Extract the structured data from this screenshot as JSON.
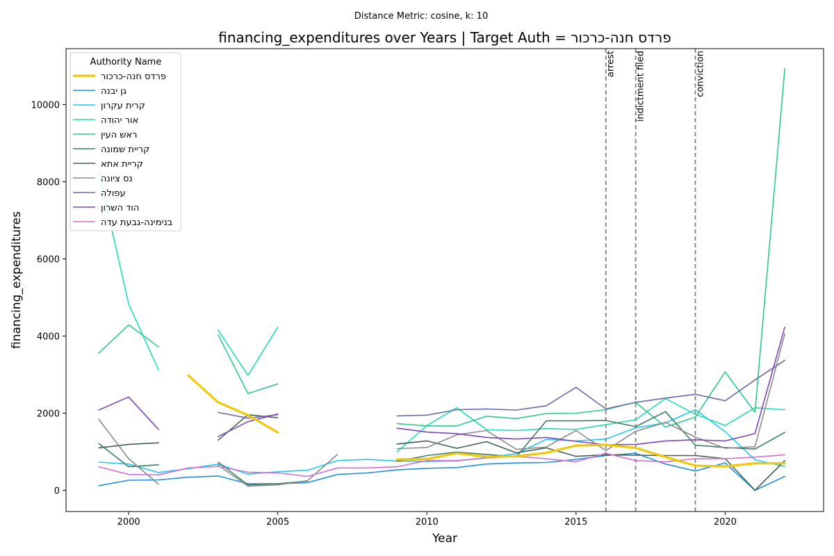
{
  "chart_data": {
    "type": "line",
    "suptitle": "Distance Metric: cosine, k: 10",
    "title": "financing_expenditures over Years | Target Auth = פרדס חנה-כרכור",
    "xlabel": "Year",
    "ylabel": "financing_expenditures",
    "xlim": [
      1997.9,
      2023.3
    ],
    "ylim": [
      -550,
      11450
    ],
    "xticks": [
      2000,
      2005,
      2010,
      2015,
      2020
    ],
    "yticks": [
      0,
      2000,
      4000,
      6000,
      8000,
      10000
    ],
    "grid": false,
    "legend": {
      "title": "Authority Name",
      "placement": "top-left"
    },
    "annotations": [
      {
        "x": 2016,
        "label": "arrest"
      },
      {
        "x": 2017,
        "label": "indictment filed"
      },
      {
        "x": 2019,
        "label": "conviction"
      }
    ],
    "series": [
      {
        "name": "פרדס חנה-כרכור",
        "color": "#f0c808",
        "width": 3.2,
        "values": [
          null,
          null,
          null,
          2980,
          2280,
          1950,
          1500,
          null,
          null,
          null,
          800,
          810,
          960,
          870,
          880,
          970,
          1160,
          1180,
          1100,
          860,
          640,
          620,
          700,
          700
        ]
      },
      {
        "name": "גן יבנה",
        "color": "#1f8fdc",
        "width": 1.6,
        "values": [
          120,
          260,
          270,
          340,
          370,
          170,
          170,
          200,
          410,
          450,
          530,
          570,
          590,
          680,
          710,
          720,
          800,
          900,
          960,
          680,
          500,
          710,
          0,
          360
        ]
      },
      {
        "name": "קרית עקרון",
        "color": "#1ec8f0",
        "width": 1.6,
        "values": [
          730,
          680,
          460,
          560,
          680,
          420,
          480,
          520,
          770,
          800,
          760,
          750,
          760,
          850,
          950,
          1320,
          1280,
          1330,
          1620,
          1750,
          2090,
          1520,
          790,
          620
        ]
      },
      {
        "name": "אור יהודה",
        "color": "#22dcb4",
        "width": 1.6,
        "values": [
          8250,
          4830,
          3120,
          null,
          4150,
          2980,
          4230,
          null,
          null,
          null,
          1000,
          1680,
          2140,
          1570,
          1550,
          1600,
          1580,
          1700,
          1830,
          2380,
          1970,
          1680,
          2140,
          2090
        ]
      },
      {
        "name": "ראש העין",
        "color": "#2cc98c",
        "width": 1.6,
        "values": [
          3560,
          4290,
          3720,
          null,
          4030,
          2510,
          2760,
          null,
          null,
          null,
          1730,
          1670,
          1670,
          1920,
          1860,
          1990,
          2000,
          2090,
          2280,
          1640,
          1900,
          3070,
          2020,
          10930
        ]
      },
      {
        "name": "קריית שמונה",
        "color": "#3a7d64",
        "width": 1.6,
        "values": [
          1210,
          610,
          660,
          null,
          730,
          140,
          170,
          240,
          null,
          null,
          750,
          900,
          990,
          930,
          870,
          1800,
          1800,
          1810,
          1650,
          2040,
          1170,
          1110,
          1070,
          1500
        ]
      },
      {
        "name": "קריית אתא",
        "color": "#435e52",
        "width": 1.6,
        "values": [
          1100,
          1190,
          1230,
          null,
          1300,
          1960,
          1880,
          null,
          null,
          null,
          1200,
          1280,
          1090,
          1260,
          970,
          1100,
          880,
          920,
          910,
          900,
          900,
          820,
          0,
          770
        ]
      },
      {
        "name": "נס ציונה",
        "color": "#8a8a8a",
        "width": 1.6,
        "values": [
          1840,
          820,
          160,
          null,
          650,
          110,
          140,
          250,
          930,
          null,
          1080,
          1110,
          1440,
          1550,
          1060,
          1120,
          1550,
          1030,
          1530,
          1760,
          1380,
          1090,
          1130,
          4060
        ]
      },
      {
        "name": "עפולה",
        "color": "#6a6aa6",
        "width": 1.6,
        "values": [
          null,
          null,
          null,
          null,
          2020,
          1870,
          1960,
          null,
          null,
          null,
          1930,
          1950,
          2090,
          2110,
          2080,
          2190,
          2670,
          2110,
          2280,
          2390,
          2490,
          2320,
          2860,
          3370
        ]
      },
      {
        "name": "הוד השרון",
        "color": "#7d46b4",
        "width": 1.6,
        "values": [
          2080,
          2420,
          1580,
          null,
          1390,
          1780,
          1980,
          null,
          null,
          null,
          1610,
          1510,
          1470,
          1370,
          1330,
          1370,
          1270,
          1180,
          1190,
          1280,
          1310,
          1280,
          1470,
          4230
        ]
      },
      {
        "name": "בנימינה-גבעת עדה",
        "color": "#d46ed2",
        "width": 1.6,
        "values": [
          610,
          410,
          400,
          580,
          620,
          470,
          450,
          360,
          580,
          580,
          610,
          770,
          770,
          840,
          880,
          820,
          740,
          960,
          770,
          740,
          820,
          820,
          860,
          920
        ]
      }
    ]
  }
}
